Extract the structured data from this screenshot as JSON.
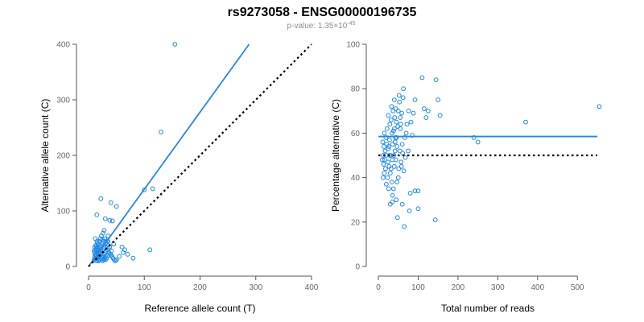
{
  "figure": {
    "title": "rs9273058 - ENSG00000196735",
    "subtitle_base": "p-value: 1.35×10",
    "subtitle_exp": "-45"
  },
  "colors": {
    "points": "#1e88e5",
    "fit_line": "#2b86d9",
    "reference_line": "#000000"
  },
  "chart_data": [
    {
      "type": "scatter",
      "xlabel": "Reference allele count (T)",
      "ylabel": "Alternative allele count (C)",
      "xlim": [
        0,
        400
      ],
      "ylim": [
        0,
        400
      ],
      "xticks": [
        0,
        100,
        200,
        300,
        400
      ],
      "yticks": [
        0,
        100,
        200,
        300,
        400
      ],
      "grid": false,
      "lines": [
        {
          "kind": "fit",
          "style": "solid",
          "x": [
            0,
            288
          ],
          "y": [
            0,
            400
          ]
        },
        {
          "kind": "reference",
          "style": "dotted",
          "x": [
            0,
            400
          ],
          "y": [
            0,
            400
          ]
        }
      ],
      "points": [
        [
          155,
          400
        ],
        [
          130,
          242
        ],
        [
          115,
          140
        ],
        [
          100,
          138
        ],
        [
          22,
          122
        ],
        [
          40,
          115
        ],
        [
          50,
          108
        ],
        [
          15,
          93
        ],
        [
          30,
          86
        ],
        [
          38,
          83
        ],
        [
          43,
          82
        ],
        [
          60,
          35
        ],
        [
          65,
          30
        ],
        [
          110,
          30
        ],
        [
          70,
          22
        ],
        [
          55,
          18
        ],
        [
          50,
          12
        ],
        [
          80,
          15
        ],
        [
          62,
          25
        ],
        [
          45,
          40
        ],
        [
          35,
          55
        ],
        [
          28,
          65
        ],
        [
          25,
          48
        ],
        [
          12,
          50
        ],
        [
          15,
          45
        ],
        [
          18,
          40
        ],
        [
          20,
          35
        ],
        [
          22,
          30
        ],
        [
          10,
          28
        ],
        [
          11,
          25
        ],
        [
          12,
          22
        ],
        [
          13,
          20
        ],
        [
          14,
          18
        ],
        [
          15,
          16
        ],
        [
          16,
          14
        ],
        [
          17,
          12
        ],
        [
          18,
          10
        ],
        [
          10,
          12
        ],
        [
          12,
          14
        ],
        [
          14,
          10
        ],
        [
          20,
          12
        ],
        [
          22,
          15
        ],
        [
          24,
          18
        ],
        [
          26,
          20
        ],
        [
          28,
          22
        ],
        [
          30,
          25
        ],
        [
          32,
          28
        ],
        [
          34,
          30
        ],
        [
          36,
          32
        ],
        [
          38,
          35
        ],
        [
          40,
          20
        ],
        [
          42,
          18
        ],
        [
          44,
          15
        ],
        [
          46,
          12
        ],
        [
          48,
          10
        ],
        [
          30,
          12
        ],
        [
          32,
          14
        ],
        [
          25,
          10
        ],
        [
          27,
          12
        ],
        [
          29,
          15
        ],
        [
          31,
          18
        ],
        [
          11,
          35
        ],
        [
          13,
          38
        ],
        [
          16,
          42
        ],
        [
          19,
          45
        ],
        [
          21,
          50
        ],
        [
          23,
          55
        ],
        [
          26,
          60
        ],
        [
          14,
          28
        ],
        [
          17,
          30
        ],
        [
          19,
          32
        ],
        [
          21,
          38
        ],
        [
          24,
          42
        ],
        [
          27,
          45
        ],
        [
          29,
          50
        ],
        [
          33,
          40
        ],
        [
          35,
          45
        ],
        [
          37,
          25
        ],
        [
          39,
          22
        ],
        [
          41,
          28
        ],
        [
          20,
          22
        ],
        [
          18,
          25
        ],
        [
          16,
          30
        ],
        [
          15,
          33
        ],
        [
          13,
          15
        ],
        [
          11,
          18
        ],
        [
          12,
          30
        ],
        [
          14,
          35
        ],
        [
          17,
          20
        ],
        [
          19,
          18
        ],
        [
          21,
          24
        ],
        [
          23,
          26
        ],
        [
          25,
          30
        ],
        [
          27,
          34
        ],
        [
          29,
          38
        ],
        [
          31,
          42
        ],
        [
          33,
          46
        ],
        [
          35,
          20
        ],
        [
          24,
          14
        ],
        [
          26,
          16
        ]
      ]
    },
    {
      "type": "scatter",
      "xlabel": "Total number of reads",
      "ylabel": "Percentage alternative (C)",
      "xlim": [
        0,
        550
      ],
      "ylim": [
        0,
        100
      ],
      "xticks": [
        0,
        100,
        200,
        300,
        400,
        500
      ],
      "yticks": [
        0,
        20,
        40,
        60,
        80,
        100
      ],
      "grid": false,
      "lines": [
        {
          "kind": "fit",
          "style": "solid",
          "x": [
            0,
            550
          ],
          "y": [
            58.5,
            58.5
          ]
        },
        {
          "kind": "reference",
          "style": "dotted",
          "x": [
            0,
            550
          ],
          "y": [
            50,
            50
          ]
        }
      ],
      "points": [
        [
          555,
          72
        ],
        [
          370,
          65
        ],
        [
          250,
          56
        ],
        [
          240,
          58
        ],
        [
          155,
          68
        ],
        [
          150,
          75
        ],
        [
          145,
          84
        ],
        [
          143,
          21
        ],
        [
          125,
          70
        ],
        [
          120,
          67
        ],
        [
          115,
          71
        ],
        [
          110,
          85
        ],
        [
          100,
          26
        ],
        [
          100,
          34
        ],
        [
          92,
          34
        ],
        [
          92,
          75
        ],
        [
          88,
          69
        ],
        [
          85,
          59
        ],
        [
          82,
          65
        ],
        [
          80,
          33
        ],
        [
          78,
          25
        ],
        [
          75,
          52
        ],
        [
          70,
          60
        ],
        [
          68,
          49
        ],
        [
          65,
          18
        ],
        [
          63,
          80
        ],
        [
          60,
          55
        ],
        [
          60,
          28
        ],
        [
          58,
          45
        ],
        [
          55,
          62
        ],
        [
          55,
          67
        ],
        [
          52,
          77
        ],
        [
          50,
          70
        ],
        [
          50,
          40
        ],
        [
          48,
          22
        ],
        [
          47,
          38
        ],
        [
          45,
          65
        ],
        [
          45,
          30
        ],
        [
          43,
          58
        ],
        [
          42,
          52
        ],
        [
          40,
          75
        ],
        [
          40,
          62
        ],
        [
          40,
          45
        ],
        [
          38,
          35
        ],
        [
          37,
          70
        ],
        [
          36,
          55
        ],
        [
          35,
          48
        ],
        [
          35,
          29
        ],
        [
          34,
          60
        ],
        [
          33,
          72
        ],
        [
          32,
          66
        ],
        [
          31,
          50
        ],
        [
          30,
          42
        ],
        [
          30,
          28
        ],
        [
          29,
          64
        ],
        [
          28,
          57
        ],
        [
          27,
          45
        ],
        [
          26,
          35
        ],
        [
          25,
          68
        ],
        [
          25,
          53
        ],
        [
          24,
          47
        ],
        [
          23,
          40
        ],
        [
          22,
          62
        ],
        [
          21,
          55
        ],
        [
          20,
          50
        ],
        [
          20,
          37
        ],
        [
          19,
          58
        ],
        [
          18,
          44
        ],
        [
          17,
          52
        ],
        [
          16,
          48
        ],
        [
          15,
          60
        ],
        [
          15,
          42
        ],
        [
          14,
          54
        ],
        [
          13,
          46
        ],
        [
          12,
          50
        ],
        [
          12,
          40
        ],
        [
          11,
          56
        ],
        [
          10,
          48
        ],
        [
          38,
          61
        ],
        [
          41,
          67
        ],
        [
          44,
          71
        ],
        [
          46,
          58
        ],
        [
          49,
          63
        ],
        [
          53,
          74
        ],
        [
          56,
          64
        ],
        [
          59,
          69
        ],
        [
          62,
          76
        ],
        [
          66,
          58
        ],
        [
          72,
          64
        ],
        [
          76,
          70
        ],
        [
          32,
          44
        ],
        [
          34,
          38
        ],
        [
          36,
          32
        ],
        [
          39,
          50
        ],
        [
          42,
          56
        ],
        [
          44,
          48
        ],
        [
          47,
          54
        ],
        [
          51,
          44
        ],
        [
          54,
          52
        ],
        [
          57,
          47
        ],
        [
          61,
          51
        ],
        [
          64,
          43
        ],
        [
          28,
          50
        ],
        [
          26,
          54
        ]
      ]
    }
  ]
}
